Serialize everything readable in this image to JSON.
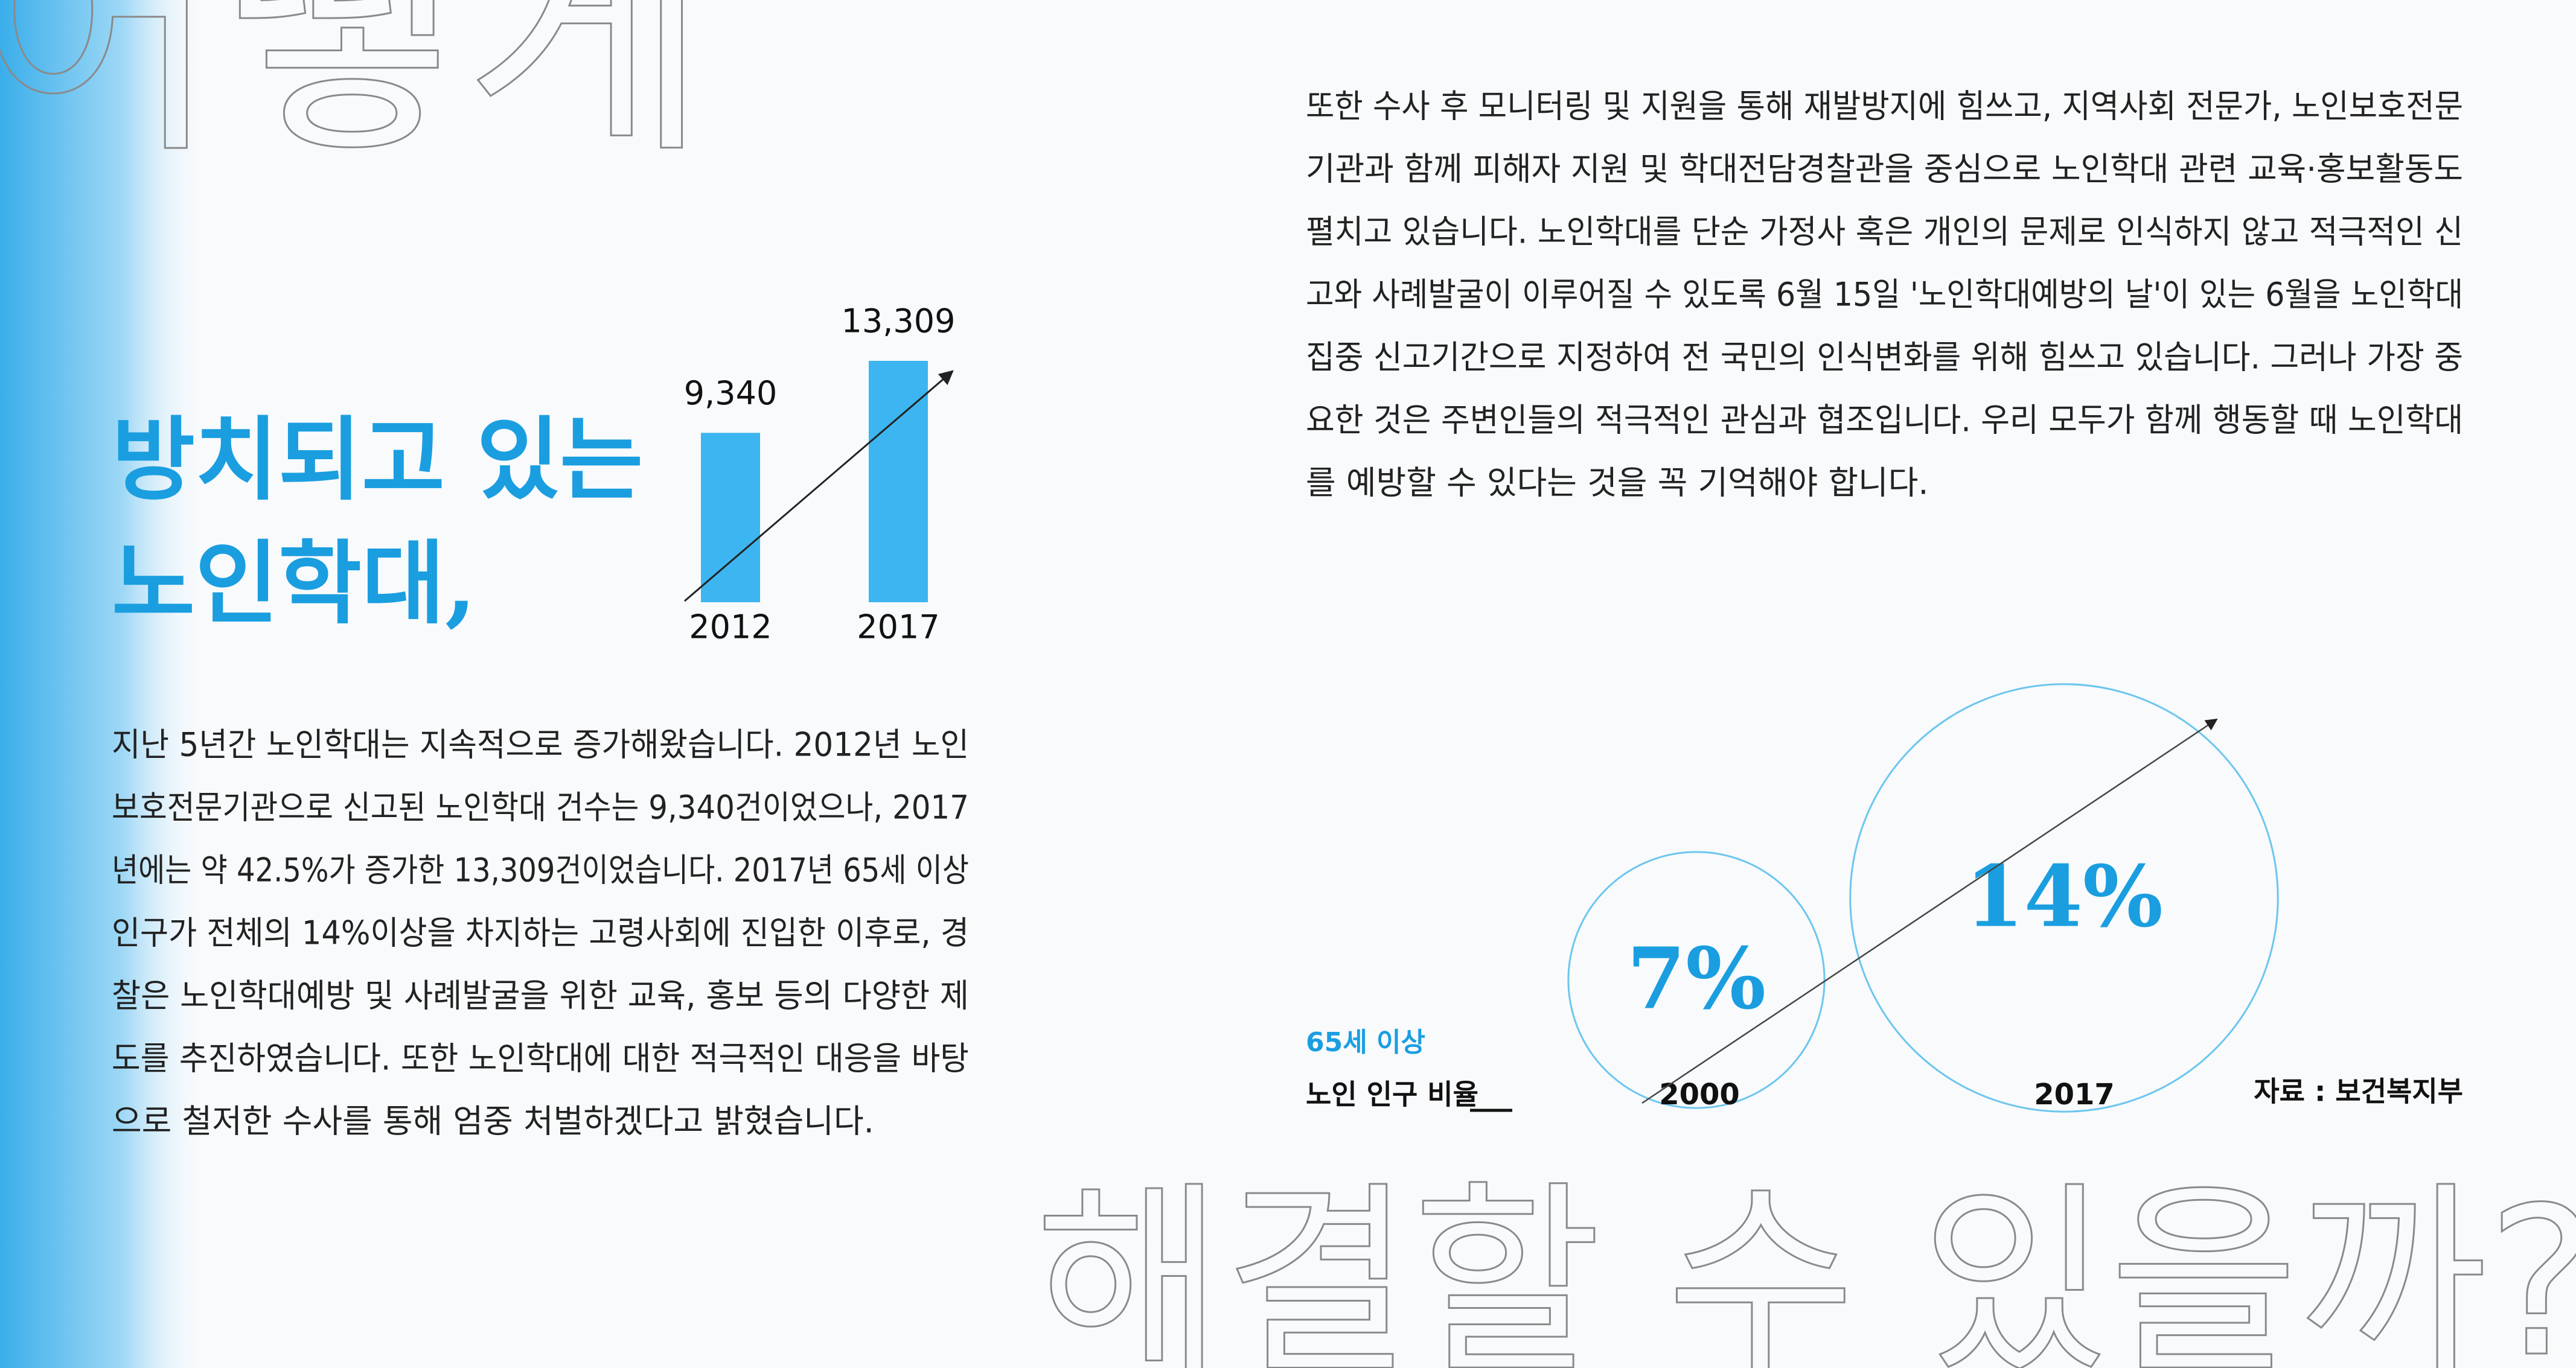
{
  "background_text": {
    "top": "어떻게",
    "bottom": "해결할 수 있을까?"
  },
  "headline": [
    "방치되고 있는",
    "노인학대,"
  ],
  "bar_chart": {
    "categories": [
      "2012",
      "2017"
    ],
    "values": [
      9340,
      13309
    ],
    "value_labels": [
      "9,340",
      "13,309"
    ],
    "color": "#3db5f0"
  },
  "left_paragraph": [
    "지난 5년간 노인학대는 지속적으로 증가해왔습니다. 2012년 노인",
    "보호전문기관으로 신고된 노인학대 건수는 9,340건이었으나, 2017",
    "년에는 약 42.5%가 증가한 13,309건이었습니다. 2017년 65세 이상",
    "인구가 전체의 14%이상을 차지하는 고령사회에 진입한 이후로, 경",
    "찰은 노인학대예방 및 사례발굴을 위한 교육, 홍보 등의 다양한 제",
    "도를 추진하였습니다. 또한 노인학대에 대한 적극적인 대응을 바탕",
    "으로 철저한 수사를 통해 엄중 처벌하겠다고 밝혔습니다."
  ],
  "right_paragraph": [
    "또한 수사 후 모니터링 및 지원을 통해 재발방지에 힘쓰고, 지역사회 전문가, 노인보호전문",
    "기관과 함께 피해자 지원 및 학대전담경찰관을 중심으로 노인학대 관련 교육·홍보활동도",
    "펼치고 있습니다. 노인학대를 단순 가정사 혹은 개인의 문제로 인식하지 않고 적극적인 신",
    "고와 사례발굴이 이루어질 수 있도록 6월 15일 '노인학대예방의 날'이 있는 6월을 노인학대",
    "집중 신고기간으로 지정하여 전 국민의 인식변화를 위해 힘쓰고 있습니다. 그러나 가장 중",
    "요한 것은 주변인들의 적극적인 관심과 협조입니다. 우리 모두가 함께 행동할 때 노인학대",
    "를 예방할 수 있다는 것을 꼭 기억해야 합니다."
  ],
  "ratio_chart": {
    "label": "65세 이상",
    "caption": "노인 인구 비율",
    "categories": [
      "2000",
      "2017"
    ],
    "values": [
      7,
      14
    ],
    "value_labels": [
      "7%",
      "14%"
    ],
    "source": "자료 : 보건복지부"
  }
}
